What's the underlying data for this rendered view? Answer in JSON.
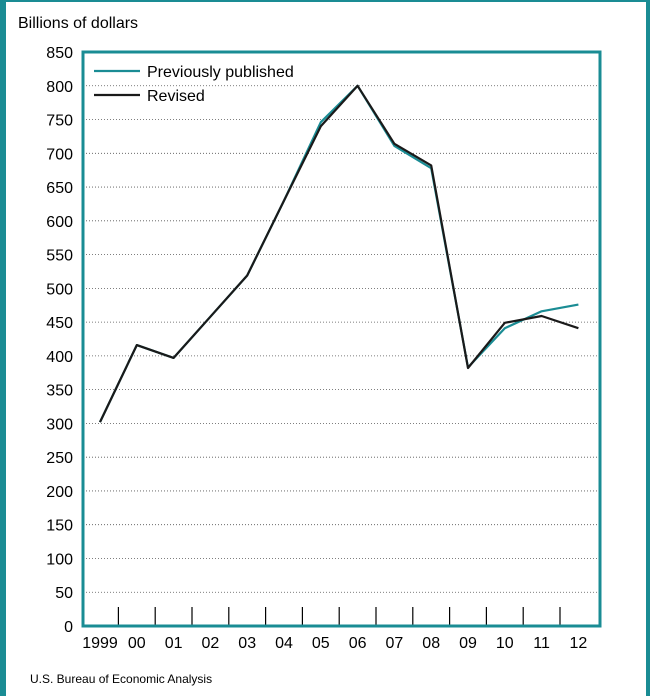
{
  "chart_data": {
    "type": "line",
    "ylabel": "Billions of dollars",
    "categories": [
      "1999",
      "00",
      "01",
      "02",
      "03",
      "04",
      "05",
      "06",
      "07",
      "08",
      "09",
      "10",
      "11",
      "12"
    ],
    "ylim": [
      0,
      850
    ],
    "yticks": [
      0,
      50,
      100,
      150,
      200,
      250,
      300,
      350,
      400,
      450,
      500,
      550,
      600,
      650,
      700,
      750,
      800,
      850
    ],
    "grid": true,
    "legend_position": "top-left",
    "series": [
      {
        "name": "Previously published",
        "color": "#1a8c94",
        "values": [
          302,
          416,
          397,
          458,
          519,
          630,
          746,
          800,
          711,
          678,
          383,
          441,
          466,
          476
        ]
      },
      {
        "name": "Revised",
        "color": "#1a1a1a",
        "values": [
          302,
          416,
          397,
          458,
          519,
          630,
          740,
          800,
          714,
          682,
          382,
          449,
          459,
          441
        ]
      }
    ]
  },
  "source": "U.S. Bureau of Economic Analysis"
}
